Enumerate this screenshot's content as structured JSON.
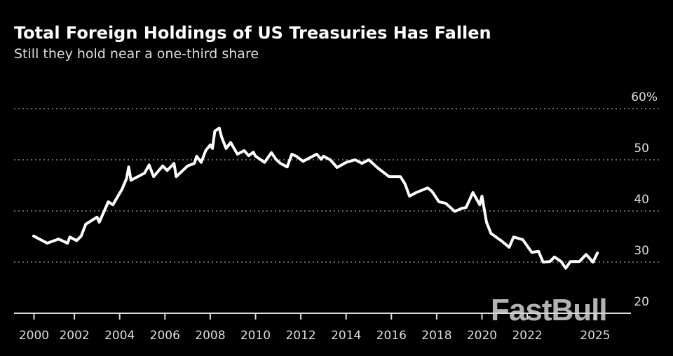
{
  "chart_data": {
    "type": "line",
    "title": "Total Foreign Holdings of US Treasuries Has Fallen",
    "subtitle": "Still they hold near a one-third share",
    "xlabel": "",
    "ylabel": "",
    "ylim": [
      20,
      60
    ],
    "xlim": [
      2000,
      2025
    ],
    "y_ticks": [
      "20",
      "30",
      "40",
      "50",
      "60%"
    ],
    "y_tick_values": [
      20,
      30,
      40,
      50,
      60
    ],
    "x_ticks": [
      "2000",
      "2002",
      "2004",
      "2006",
      "2008",
      "2010",
      "2012",
      "2014",
      "2016",
      "2018",
      "2020",
      "2022",
      "2025"
    ],
    "x_tick_values": [
      2000,
      2002,
      2004,
      2006,
      2008,
      2010,
      2012,
      2014,
      2016,
      2018,
      2020,
      2022,
      2025
    ],
    "grid": "horizontal dotted",
    "line_color": "#ffffff",
    "background": "#000000",
    "series": [
      {
        "x": [
          2000.2,
          2000.8,
          2001.3,
          2001.7,
          2001.8,
          2002.1,
          2002.3,
          2002.5,
          2003.0,
          2003.1,
          2003.5,
          2003.7,
          2004.1,
          2004.3,
          2004.4,
          2004.5,
          2005.1,
          2005.3,
          2005.5,
          2005.9,
          2006.1,
          2006.4,
          2006.5,
          2007.0,
          2007.3,
          2007.4,
          2007.6,
          2007.8,
          2008.0,
          2008.1,
          2008.2,
          2008.4,
          2008.5,
          2008.7,
          2008.9,
          2009.2,
          2009.5,
          2009.7,
          2009.9,
          2010.0,
          2010.4,
          2010.7,
          2010.9,
          2011.1,
          2011.4,
          2011.6,
          2011.8,
          2012.1,
          2012.7,
          2012.9,
          2013.0,
          2013.3,
          2013.6,
          2014.0,
          2014.4,
          2014.7,
          2015.0,
          2015.4,
          2015.9,
          2016.4,
          2016.6,
          2016.8,
          2017.1,
          2017.6,
          2017.8,
          2018.1,
          2018.4,
          2018.8,
          2019.1,
          2019.3,
          2019.6,
          2019.9,
          2020.0,
          2020.2,
          2020.4,
          2020.9,
          2021.2,
          2021.4,
          2021.8,
          2022.2,
          2022.5,
          2022.7,
          2023.0,
          2023.2,
          2023.5,
          2023.7,
          2023.9,
          2024.3,
          2024.6,
          2024.9,
          2025.1
        ],
        "values": [
          35.1,
          33.7,
          34.5,
          33.7,
          34.9,
          34.2,
          35.1,
          37.4,
          38.8,
          37.8,
          41.8,
          41.2,
          44.2,
          46.3,
          48.6,
          46.0,
          47.4,
          49.0,
          46.7,
          48.8,
          47.9,
          49.3,
          46.7,
          48.8,
          49.3,
          50.7,
          49.5,
          51.8,
          52.9,
          52.2,
          55.6,
          56.2,
          54.5,
          52.2,
          53.4,
          51.1,
          51.8,
          50.8,
          51.5,
          50.7,
          49.5,
          51.4,
          50.1,
          49.3,
          48.6,
          51.1,
          50.7,
          49.7,
          51.1,
          50.1,
          50.7,
          50.0,
          48.5,
          49.5,
          50.0,
          49.3,
          50.0,
          48.4,
          46.7,
          46.7,
          45.3,
          42.9,
          43.6,
          44.5,
          43.8,
          41.8,
          41.5,
          39.9,
          40.5,
          40.7,
          43.6,
          41.2,
          42.9,
          37.8,
          35.6,
          34.0,
          32.9,
          34.9,
          34.4,
          31.9,
          32.1,
          30.0,
          30.1,
          31.0,
          30.1,
          28.8,
          30.1,
          30.1,
          31.5,
          30.0,
          31.8
        ]
      }
    ],
    "watermark": "FastBull"
  }
}
